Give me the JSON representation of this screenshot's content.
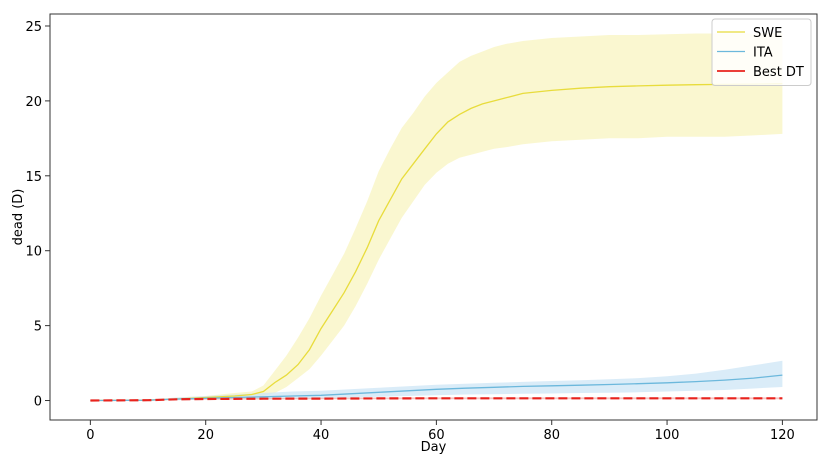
{
  "chart_data": {
    "type": "line",
    "xlabel": "Day",
    "ylabel": "dead (D)",
    "xlim": [
      -7,
      126
    ],
    "ylim": [
      -1.3,
      25.8
    ],
    "xticks": [
      0,
      20,
      40,
      60,
      80,
      100,
      120
    ],
    "yticks": [
      0,
      5,
      10,
      15,
      20,
      25
    ],
    "grid": false,
    "legend_position": "top-right",
    "series": [
      {
        "name": "SWE",
        "color": "#e8dc3c",
        "band_color": "#f8f4c0",
        "x": [
          0,
          10,
          15,
          20,
          25,
          28,
          30,
          32,
          34,
          36,
          38,
          40,
          42,
          44,
          46,
          48,
          50,
          52,
          54,
          56,
          58,
          60,
          62,
          64,
          66,
          68,
          70,
          72,
          75,
          80,
          85,
          90,
          95,
          100,
          105,
          110,
          115,
          120
        ],
        "y": [
          0,
          0.02,
          0.1,
          0.2,
          0.3,
          0.4,
          0.6,
          1.2,
          1.7,
          2.4,
          3.4,
          4.8,
          6.0,
          7.2,
          8.6,
          10.2,
          12.0,
          13.4,
          14.8,
          15.8,
          16.8,
          17.8,
          18.6,
          19.1,
          19.5,
          19.8,
          20.0,
          20.2,
          20.5,
          20.7,
          20.85,
          20.95,
          21.0,
          21.05,
          21.08,
          21.1,
          21.12,
          21.15
        ],
        "lower": [
          0,
          0,
          0.05,
          0.1,
          0.15,
          0.2,
          0.3,
          0.5,
          0.9,
          1.5,
          2.1,
          3.0,
          4.0,
          5.0,
          6.3,
          7.8,
          9.4,
          10.8,
          12.2,
          13.3,
          14.4,
          15.2,
          15.8,
          16.2,
          16.4,
          16.6,
          16.8,
          16.9,
          17.1,
          17.3,
          17.4,
          17.5,
          17.5,
          17.6,
          17.6,
          17.6,
          17.7,
          17.8
        ],
        "upper": [
          0,
          0.05,
          0.2,
          0.3,
          0.5,
          0.6,
          1.0,
          2.0,
          3.0,
          4.2,
          5.5,
          7.0,
          8.4,
          9.8,
          11.5,
          13.3,
          15.3,
          16.8,
          18.2,
          19.2,
          20.3,
          21.2,
          21.9,
          22.6,
          23.0,
          23.3,
          23.6,
          23.8,
          24.0,
          24.2,
          24.3,
          24.4,
          24.4,
          24.45,
          24.5,
          24.5,
          24.5,
          24.55
        ]
      },
      {
        "name": "ITA",
        "color": "#6cb8dc",
        "band_color": "#cde6f6",
        "x": [
          0,
          10,
          15,
          20,
          25,
          30,
          35,
          40,
          45,
          50,
          55,
          60,
          65,
          70,
          75,
          80,
          85,
          90,
          95,
          100,
          105,
          110,
          115,
          120
        ],
        "y": [
          0,
          0.02,
          0.1,
          0.15,
          0.2,
          0.25,
          0.3,
          0.35,
          0.45,
          0.55,
          0.65,
          0.75,
          0.82,
          0.88,
          0.94,
          0.98,
          1.02,
          1.07,
          1.12,
          1.18,
          1.26,
          1.36,
          1.5,
          1.7
        ],
        "lower": [
          0,
          0,
          0.02,
          0.05,
          0.07,
          0.1,
          0.12,
          0.15,
          0.2,
          0.25,
          0.3,
          0.35,
          0.4,
          0.42,
          0.45,
          0.47,
          0.5,
          0.52,
          0.55,
          0.6,
          0.65,
          0.7,
          0.8,
          0.9
        ],
        "upper": [
          0,
          0.05,
          0.2,
          0.3,
          0.4,
          0.5,
          0.6,
          0.65,
          0.75,
          0.85,
          0.95,
          1.05,
          1.12,
          1.18,
          1.24,
          1.3,
          1.35,
          1.42,
          1.5,
          1.62,
          1.8,
          2.05,
          2.35,
          2.65
        ]
      },
      {
        "name": "Best DT",
        "color": "#e8231d",
        "band_color": "#f4b0ae",
        "dashed": true,
        "x": [
          0,
          10,
          15,
          20,
          30,
          40,
          50,
          60,
          70,
          80,
          90,
          100,
          110,
          120
        ],
        "y": [
          0,
          0.02,
          0.08,
          0.1,
          0.12,
          0.13,
          0.14,
          0.15,
          0.15,
          0.15,
          0.15,
          0.15,
          0.15,
          0.15
        ],
        "lower": [
          0,
          0.01,
          0.05,
          0.06,
          0.07,
          0.08,
          0.08,
          0.09,
          0.09,
          0.09,
          0.09,
          0.09,
          0.09,
          0.09
        ],
        "upper": [
          0,
          0.03,
          0.12,
          0.14,
          0.17,
          0.19,
          0.2,
          0.21,
          0.21,
          0.21,
          0.21,
          0.21,
          0.21,
          0.21
        ]
      }
    ]
  }
}
